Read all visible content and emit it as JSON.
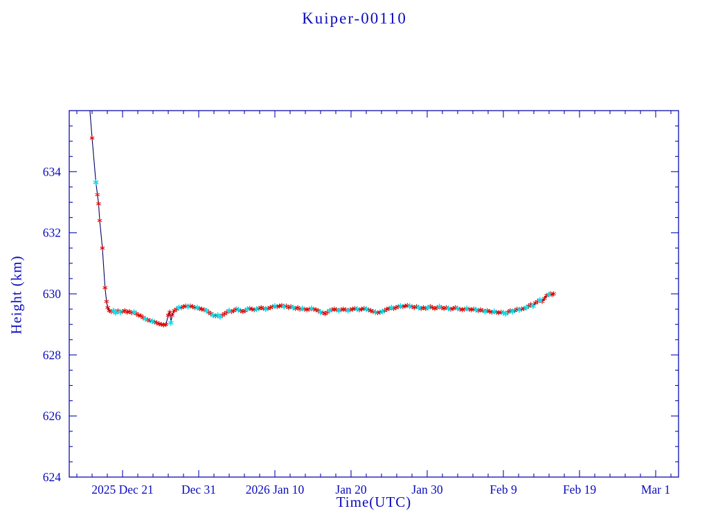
{
  "window": {
    "background": "#ffffff"
  },
  "style": {
    "axis_color": "#0a0ab4",
    "text_color": "#0a0ac0",
    "line_color": "#000066",
    "red_marker_color": "#dd0000",
    "cyan_marker_color": "#00dde8"
  },
  "chart_data": {
    "type": "line",
    "title": "Kuiper-00110",
    "xlabel": "Time(UTC)",
    "ylabel": "Height (km)",
    "grid": false,
    "legend": "none",
    "x_axis": {
      "unit": "days",
      "range": [
        0,
        80
      ],
      "minor_step": 2,
      "ticks": [
        {
          "day": 7,
          "label": "2025 Dec 21"
        },
        {
          "day": 17,
          "label": "Dec 31"
        },
        {
          "day": 27,
          "label": "2026 Jan 10"
        },
        {
          "day": 37,
          "label": "Jan 20"
        },
        {
          "day": 47,
          "label": "Jan 30"
        },
        {
          "day": 57,
          "label": "Feb 9"
        },
        {
          "day": 67,
          "label": "Feb 19"
        },
        {
          "day": 77,
          "label": "Mar 1"
        }
      ]
    },
    "y_axis": {
      "range": [
        624,
        636
      ],
      "ticks": [
        624,
        626,
        628,
        630,
        632,
        634
      ],
      "minor_step": 0.5
    },
    "series": [
      {
        "name": "series-red",
        "marker": "asterisk",
        "radius": 3.6,
        "stroke_width": 1.1
      },
      {
        "name": "series-cyan",
        "marker": "asterisk",
        "radius": 4.2,
        "stroke_width": 1.5
      }
    ],
    "points": [
      [
        2.2,
        637.6,
        0
      ],
      [
        3.0,
        635.1,
        0
      ],
      [
        3.5,
        633.65,
        1
      ],
      [
        3.7,
        633.25,
        0
      ],
      [
        3.85,
        632.95,
        0
      ],
      [
        4.0,
        632.4,
        0
      ],
      [
        4.35,
        631.5,
        0
      ],
      [
        4.7,
        630.2,
        0
      ],
      [
        4.9,
        629.75,
        0
      ],
      [
        5.05,
        629.55,
        0
      ],
      [
        5.25,
        629.45,
        0
      ],
      [
        5.5,
        629.42,
        0
      ],
      [
        5.8,
        629.45,
        1
      ],
      [
        6.1,
        629.38,
        1
      ],
      [
        6.4,
        629.44,
        0
      ],
      [
        6.7,
        629.4,
        1
      ],
      [
        7.0,
        629.42,
        0
      ],
      [
        7.3,
        629.45,
        0
      ],
      [
        7.6,
        629.4,
        0
      ],
      [
        7.9,
        629.42,
        0
      ],
      [
        8.2,
        629.38,
        0
      ],
      [
        8.5,
        629.4,
        1
      ],
      [
        8.8,
        629.35,
        0
      ],
      [
        9.1,
        629.3,
        0
      ],
      [
        9.4,
        629.28,
        0
      ],
      [
        9.7,
        629.22,
        0
      ],
      [
        10.0,
        629.18,
        1
      ],
      [
        10.3,
        629.15,
        0
      ],
      [
        10.6,
        629.12,
        0
      ],
      [
        10.9,
        629.1,
        1
      ],
      [
        11.2,
        629.08,
        0
      ],
      [
        11.5,
        629.05,
        0
      ],
      [
        11.8,
        629.02,
        0
      ],
      [
        12.1,
        629.0,
        0
      ],
      [
        12.4,
        628.98,
        0
      ],
      [
        12.7,
        629.0,
        0
      ],
      [
        13.0,
        629.3,
        0
      ],
      [
        13.2,
        629.4,
        0
      ],
      [
        13.35,
        629.05,
        1
      ],
      [
        13.5,
        629.3,
        0
      ],
      [
        13.8,
        629.45,
        0
      ],
      [
        14.1,
        629.5,
        0
      ],
      [
        14.4,
        629.55,
        1
      ],
      [
        14.7,
        629.55,
        0
      ],
      [
        15.0,
        629.58,
        0
      ],
      [
        15.3,
        629.6,
        0
      ],
      [
        15.6,
        629.58,
        1
      ],
      [
        15.9,
        629.6,
        0
      ],
      [
        16.2,
        629.58,
        0
      ],
      [
        16.5,
        629.55,
        0
      ],
      [
        16.8,
        629.55,
        1
      ],
      [
        17.1,
        629.52,
        0
      ],
      [
        17.4,
        629.5,
        0
      ],
      [
        17.7,
        629.48,
        0
      ],
      [
        18.0,
        629.45,
        1
      ],
      [
        18.3,
        629.4,
        0
      ],
      [
        18.6,
        629.35,
        0
      ],
      [
        18.9,
        629.3,
        1
      ],
      [
        19.2,
        629.28,
        0
      ],
      [
        19.5,
        629.3,
        1
      ],
      [
        19.8,
        629.25,
        1
      ],
      [
        20.1,
        629.3,
        0
      ],
      [
        20.4,
        629.35,
        0
      ],
      [
        20.7,
        629.4,
        0
      ],
      [
        21.0,
        629.45,
        1
      ],
      [
        21.3,
        629.42,
        0
      ],
      [
        21.6,
        629.45,
        0
      ],
      [
        21.9,
        629.5,
        0
      ],
      [
        22.2,
        629.48,
        1
      ],
      [
        22.5,
        629.45,
        0
      ],
      [
        22.8,
        629.42,
        0
      ],
      [
        23.1,
        629.45,
        0
      ],
      [
        23.4,
        629.5,
        1
      ],
      [
        23.7,
        629.52,
        0
      ],
      [
        24.0,
        629.5,
        0
      ],
      [
        24.3,
        629.48,
        0
      ],
      [
        24.6,
        629.5,
        1
      ],
      [
        24.9,
        629.52,
        0
      ],
      [
        25.2,
        629.55,
        0
      ],
      [
        25.5,
        629.52,
        0
      ],
      [
        25.8,
        629.5,
        1
      ],
      [
        26.1,
        629.52,
        0
      ],
      [
        26.4,
        629.55,
        0
      ],
      [
        26.7,
        629.58,
        0
      ],
      [
        27.0,
        629.6,
        1
      ],
      [
        27.3,
        629.58,
        0
      ],
      [
        27.6,
        629.6,
        0
      ],
      [
        27.9,
        629.62,
        0
      ],
      [
        28.2,
        629.58,
        1
      ],
      [
        28.5,
        629.6,
        0
      ],
      [
        28.8,
        629.55,
        0
      ],
      [
        29.1,
        629.58,
        0
      ],
      [
        29.4,
        629.55,
        1
      ],
      [
        29.7,
        629.52,
        0
      ],
      [
        30.0,
        629.55,
        0
      ],
      [
        30.3,
        629.5,
        0
      ],
      [
        30.6,
        629.52,
        1
      ],
      [
        30.9,
        629.5,
        0
      ],
      [
        31.2,
        629.48,
        0
      ],
      [
        31.5,
        629.5,
        0
      ],
      [
        31.8,
        629.52,
        1
      ],
      [
        32.1,
        629.5,
        0
      ],
      [
        32.4,
        629.48,
        0
      ],
      [
        32.7,
        629.45,
        0
      ],
      [
        33.0,
        629.4,
        1
      ],
      [
        33.3,
        629.38,
        0
      ],
      [
        33.6,
        629.35,
        0
      ],
      [
        33.9,
        629.4,
        0
      ],
      [
        34.2,
        629.45,
        1
      ],
      [
        34.5,
        629.48,
        0
      ],
      [
        34.8,
        629.5,
        0
      ],
      [
        35.1,
        629.48,
        0
      ],
      [
        35.4,
        629.45,
        1
      ],
      [
        35.7,
        629.48,
        0
      ],
      [
        36.0,
        629.5,
        0
      ],
      [
        36.3,
        629.48,
        0
      ],
      [
        36.6,
        629.45,
        1
      ],
      [
        36.9,
        629.48,
        0
      ],
      [
        37.2,
        629.5,
        0
      ],
      [
        37.5,
        629.52,
        0
      ],
      [
        37.8,
        629.5,
        1
      ],
      [
        38.1,
        629.48,
        0
      ],
      [
        38.4,
        629.5,
        0
      ],
      [
        38.7,
        629.52,
        0
      ],
      [
        39.0,
        629.5,
        1
      ],
      [
        39.3,
        629.48,
        0
      ],
      [
        39.6,
        629.45,
        0
      ],
      [
        39.9,
        629.42,
        0
      ],
      [
        40.2,
        629.4,
        1
      ],
      [
        40.5,
        629.38,
        0
      ],
      [
        40.8,
        629.4,
        0
      ],
      [
        41.1,
        629.42,
        1
      ],
      [
        41.4,
        629.45,
        0
      ],
      [
        41.7,
        629.5,
        0
      ],
      [
        42.0,
        629.52,
        0
      ],
      [
        42.3,
        629.55,
        1
      ],
      [
        42.6,
        629.52,
        0
      ],
      [
        42.9,
        629.55,
        0
      ],
      [
        43.2,
        629.58,
        0
      ],
      [
        43.5,
        629.6,
        1
      ],
      [
        43.8,
        629.58,
        0
      ],
      [
        44.1,
        629.6,
        0
      ],
      [
        44.4,
        629.62,
        0
      ],
      [
        44.7,
        629.6,
        1
      ],
      [
        45.0,
        629.58,
        0
      ],
      [
        45.3,
        629.55,
        0
      ],
      [
        45.6,
        629.58,
        0
      ],
      [
        45.9,
        629.55,
        1
      ],
      [
        46.2,
        629.52,
        0
      ],
      [
        46.5,
        629.55,
        0
      ],
      [
        46.8,
        629.52,
        0
      ],
      [
        47.1,
        629.55,
        1
      ],
      [
        47.4,
        629.58,
        0
      ],
      [
        47.7,
        629.55,
        0
      ],
      [
        48.0,
        629.52,
        0
      ],
      [
        48.3,
        629.55,
        0
      ],
      [
        48.6,
        629.58,
        1
      ],
      [
        48.9,
        629.55,
        0
      ],
      [
        49.2,
        629.52,
        0
      ],
      [
        49.5,
        629.55,
        0
      ],
      [
        49.8,
        629.52,
        1
      ],
      [
        50.1,
        629.5,
        0
      ],
      [
        50.4,
        629.52,
        0
      ],
      [
        50.7,
        629.55,
        0
      ],
      [
        51.0,
        629.52,
        1
      ],
      [
        51.3,
        629.5,
        0
      ],
      [
        51.6,
        629.48,
        0
      ],
      [
        51.9,
        629.5,
        0
      ],
      [
        52.2,
        629.52,
        1
      ],
      [
        52.5,
        629.5,
        0
      ],
      [
        52.8,
        629.48,
        0
      ],
      [
        53.1,
        629.5,
        0
      ],
      [
        53.4,
        629.48,
        1
      ],
      [
        53.7,
        629.45,
        0
      ],
      [
        54.0,
        629.48,
        0
      ],
      [
        54.3,
        629.45,
        0
      ],
      [
        54.6,
        629.42,
        1
      ],
      [
        54.9,
        629.45,
        0
      ],
      [
        55.2,
        629.42,
        0
      ],
      [
        55.5,
        629.4,
        0
      ],
      [
        55.8,
        629.42,
        1
      ],
      [
        56.1,
        629.4,
        0
      ],
      [
        56.4,
        629.38,
        0
      ],
      [
        56.7,
        629.4,
        0
      ],
      [
        57.0,
        629.38,
        1
      ],
      [
        57.3,
        629.35,
        1
      ],
      [
        57.6,
        629.4,
        0
      ],
      [
        57.9,
        629.45,
        0
      ],
      [
        58.2,
        629.42,
        1
      ],
      [
        58.5,
        629.45,
        0
      ],
      [
        58.8,
        629.5,
        0
      ],
      [
        59.1,
        629.48,
        1
      ],
      [
        59.4,
        629.5,
        0
      ],
      [
        59.7,
        629.52,
        0
      ],
      [
        60.0,
        629.55,
        1
      ],
      [
        60.3,
        629.6,
        0
      ],
      [
        60.6,
        629.65,
        0
      ],
      [
        60.9,
        629.6,
        1
      ],
      [
        61.2,
        629.7,
        0
      ],
      [
        61.5,
        629.75,
        0
      ],
      [
        61.8,
        629.8,
        1
      ],
      [
        62.1,
        629.75,
        0
      ],
      [
        62.4,
        629.85,
        0
      ],
      [
        62.7,
        629.95,
        0
      ],
      [
        63.0,
        629.98,
        1
      ],
      [
        63.2,
        630.0,
        0
      ],
      [
        63.4,
        629.98,
        0
      ],
      [
        63.6,
        630.0,
        0
      ]
    ]
  }
}
